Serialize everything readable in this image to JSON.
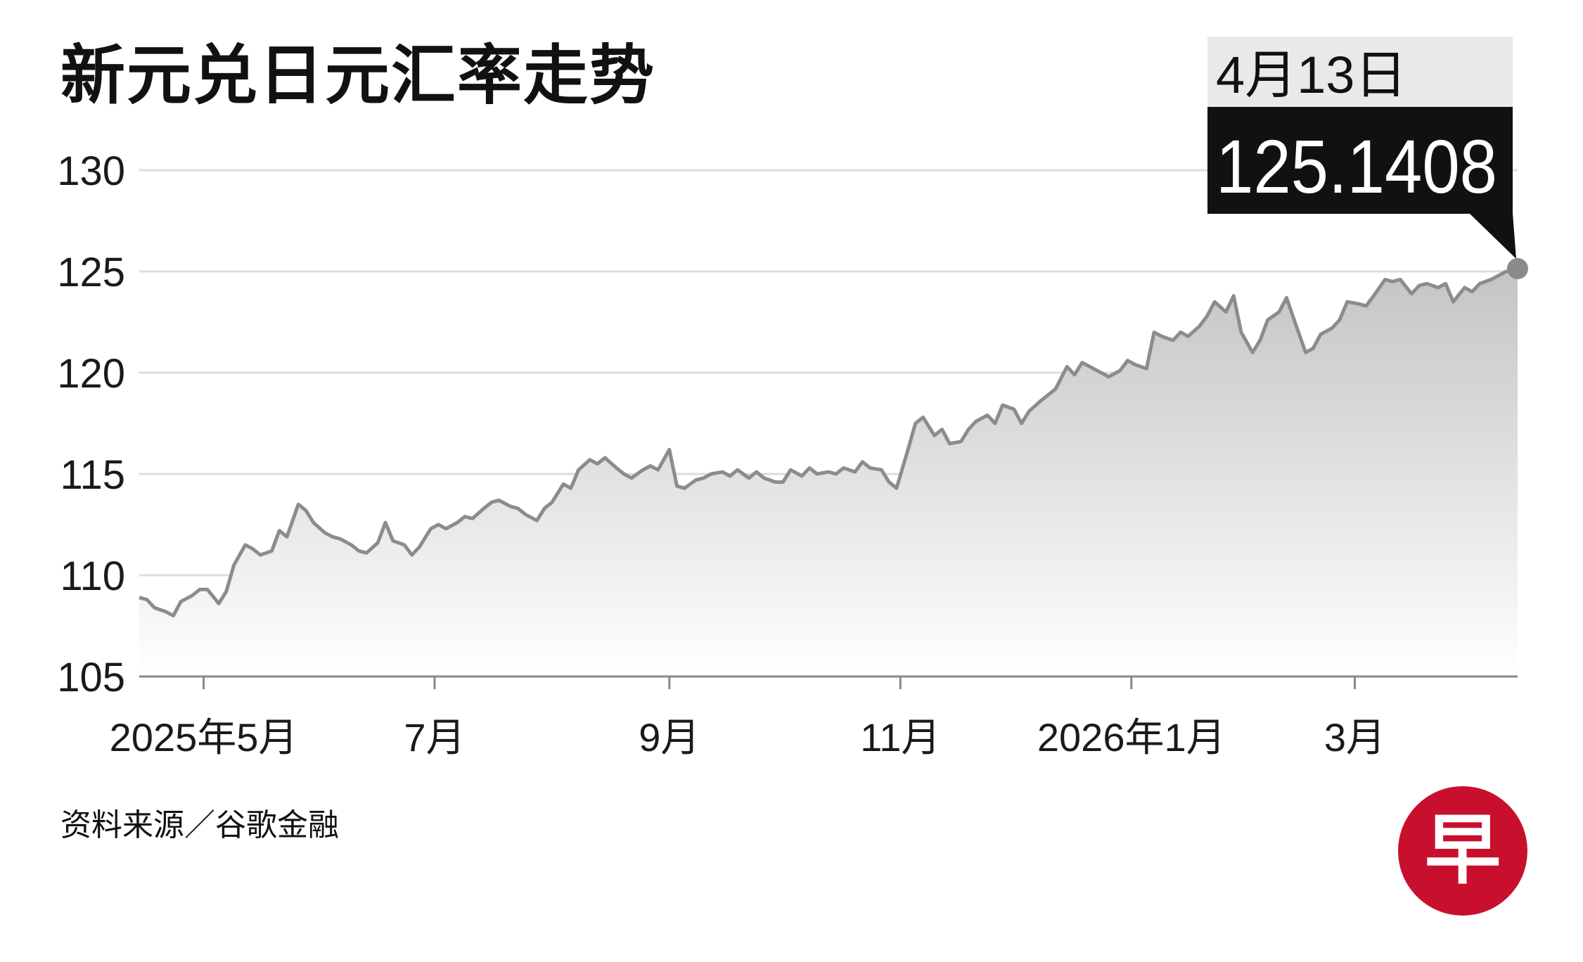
{
  "title": "新元兑日元汇率走势",
  "source": "资料来源／谷歌金融",
  "logo": {
    "glyph": "早",
    "color": "#c8102e"
  },
  "callout": {
    "date": "4月13日",
    "value": "125.1408"
  },
  "chart_data": {
    "type": "area",
    "title": "新元兑日元汇率走势",
    "xlabel": "",
    "ylabel": "",
    "ylim": [
      105,
      130
    ],
    "yticks": [
      130,
      125,
      120,
      115,
      110,
      105
    ],
    "grid": true,
    "x_range": [
      "2025-04-14",
      "2026-04-13"
    ],
    "xticks": [
      {
        "date": "2025-05-01",
        "label": "2025年5月"
      },
      {
        "date": "2025-07-01",
        "label": "7月"
      },
      {
        "date": "2025-09-01",
        "label": "9月"
      },
      {
        "date": "2025-11-01",
        "label": "11月"
      },
      {
        "date": "2026-01-01",
        "label": "2026年1月"
      },
      {
        "date": "2026-03-01",
        "label": "3月"
      }
    ],
    "colors": {
      "line": "#8c8c8c",
      "fill_top": "#c4c4c4",
      "fill_bottom": "#ffffff",
      "grid": "#dcdcdc",
      "axis": "#888888",
      "dot": "#8a8a8a",
      "callout_bg": "#111111",
      "callout_date_bg": "#e9e9e9"
    },
    "series": [
      {
        "points": [
          [
            "2025-04-14",
            108.9
          ],
          [
            "2025-04-16",
            108.8
          ],
          [
            "2025-04-18",
            108.4
          ],
          [
            "2025-04-21",
            108.2
          ],
          [
            "2025-04-23",
            108.0
          ],
          [
            "2025-04-25",
            108.7
          ],
          [
            "2025-04-28",
            109.0
          ],
          [
            "2025-04-30",
            109.3
          ],
          [
            "2025-05-02",
            109.3
          ],
          [
            "2025-05-05",
            108.6
          ],
          [
            "2025-05-07",
            109.2
          ],
          [
            "2025-05-09",
            110.5
          ],
          [
            "2025-05-12",
            111.5
          ],
          [
            "2025-05-14",
            111.3
          ],
          [
            "2025-05-16",
            111.0
          ],
          [
            "2025-05-19",
            111.2
          ],
          [
            "2025-05-21",
            112.2
          ],
          [
            "2025-05-23",
            111.9
          ],
          [
            "2025-05-26",
            113.5
          ],
          [
            "2025-05-28",
            113.2
          ],
          [
            "2025-05-30",
            112.6
          ],
          [
            "2025-06-02",
            112.1
          ],
          [
            "2025-06-04",
            111.9
          ],
          [
            "2025-06-06",
            111.8
          ],
          [
            "2025-06-09",
            111.5
          ],
          [
            "2025-06-11",
            111.2
          ],
          [
            "2025-06-13",
            111.1
          ],
          [
            "2025-06-16",
            111.6
          ],
          [
            "2025-06-18",
            112.6
          ],
          [
            "2025-06-20",
            111.7
          ],
          [
            "2025-06-23",
            111.5
          ],
          [
            "2025-06-25",
            111.0
          ],
          [
            "2025-06-27",
            111.4
          ],
          [
            "2025-06-30",
            112.3
          ],
          [
            "2025-07-02",
            112.5
          ],
          [
            "2025-07-04",
            112.3
          ],
          [
            "2025-07-07",
            112.6
          ],
          [
            "2025-07-09",
            112.9
          ],
          [
            "2025-07-11",
            112.8
          ],
          [
            "2025-07-14",
            113.3
          ],
          [
            "2025-07-16",
            113.6
          ],
          [
            "2025-07-18",
            113.7
          ],
          [
            "2025-07-21",
            113.4
          ],
          [
            "2025-07-23",
            113.3
          ],
          [
            "2025-07-25",
            113.0
          ],
          [
            "2025-07-28",
            112.7
          ],
          [
            "2025-07-30",
            113.3
          ],
          [
            "2025-08-01",
            113.6
          ],
          [
            "2025-08-04",
            114.5
          ],
          [
            "2025-08-06",
            114.3
          ],
          [
            "2025-08-08",
            115.2
          ],
          [
            "2025-08-11",
            115.7
          ],
          [
            "2025-08-13",
            115.5
          ],
          [
            "2025-08-15",
            115.8
          ],
          [
            "2025-08-18",
            115.3
          ],
          [
            "2025-08-20",
            115.0
          ],
          [
            "2025-08-22",
            114.8
          ],
          [
            "2025-08-25",
            115.2
          ],
          [
            "2025-08-27",
            115.4
          ],
          [
            "2025-08-29",
            115.2
          ],
          [
            "2025-09-01",
            116.2
          ],
          [
            "2025-09-03",
            114.4
          ],
          [
            "2025-09-05",
            114.3
          ],
          [
            "2025-09-08",
            114.7
          ],
          [
            "2025-09-10",
            114.8
          ],
          [
            "2025-09-12",
            115.0
          ],
          [
            "2025-09-15",
            115.1
          ],
          [
            "2025-09-17",
            114.9
          ],
          [
            "2025-09-19",
            115.2
          ],
          [
            "2025-09-22",
            114.8
          ],
          [
            "2025-09-24",
            115.1
          ],
          [
            "2025-09-26",
            114.8
          ],
          [
            "2025-09-29",
            114.6
          ],
          [
            "2025-10-01",
            114.6
          ],
          [
            "2025-10-03",
            115.2
          ],
          [
            "2025-10-06",
            114.9
          ],
          [
            "2025-10-08",
            115.3
          ],
          [
            "2025-10-10",
            115.0
          ],
          [
            "2025-10-13",
            115.1
          ],
          [
            "2025-10-15",
            115.0
          ],
          [
            "2025-10-17",
            115.3
          ],
          [
            "2025-10-20",
            115.1
          ],
          [
            "2025-10-22",
            115.6
          ],
          [
            "2025-10-24",
            115.3
          ],
          [
            "2025-10-27",
            115.2
          ],
          [
            "2025-10-29",
            114.6
          ],
          [
            "2025-10-31",
            114.3
          ],
          [
            "2025-11-03",
            116.2
          ],
          [
            "2025-11-05",
            117.5
          ],
          [
            "2025-11-07",
            117.8
          ],
          [
            "2025-11-10",
            116.9
          ],
          [
            "2025-11-12",
            117.2
          ],
          [
            "2025-11-14",
            116.5
          ],
          [
            "2025-11-17",
            116.6
          ],
          [
            "2025-11-19",
            117.2
          ],
          [
            "2025-11-21",
            117.6
          ],
          [
            "2025-11-24",
            117.9
          ],
          [
            "2025-11-26",
            117.5
          ],
          [
            "2025-11-28",
            118.4
          ],
          [
            "2025-12-01",
            118.2
          ],
          [
            "2025-12-03",
            117.5
          ],
          [
            "2025-12-05",
            118.1
          ],
          [
            "2025-12-08",
            118.6
          ],
          [
            "2025-12-10",
            118.9
          ],
          [
            "2025-12-12",
            119.2
          ],
          [
            "2025-12-15",
            120.3
          ],
          [
            "2025-12-17",
            119.9
          ],
          [
            "2025-12-19",
            120.5
          ],
          [
            "2025-12-22",
            120.2
          ],
          [
            "2025-12-24",
            120.0
          ],
          [
            "2025-12-26",
            119.8
          ],
          [
            "2025-12-29",
            120.1
          ],
          [
            "2025-12-31",
            120.6
          ],
          [
            "2026-01-02",
            120.4
          ],
          [
            "2026-01-05",
            120.2
          ],
          [
            "2026-01-07",
            122.0
          ],
          [
            "2026-01-09",
            121.8
          ],
          [
            "2026-01-12",
            121.6
          ],
          [
            "2026-01-14",
            122.0
          ],
          [
            "2026-01-16",
            121.8
          ],
          [
            "2026-01-19",
            122.3
          ],
          [
            "2026-01-21",
            122.8
          ],
          [
            "2026-01-23",
            123.5
          ],
          [
            "2026-01-26",
            123.0
          ],
          [
            "2026-01-28",
            123.8
          ],
          [
            "2026-01-30",
            122.0
          ],
          [
            "2026-02-02",
            121.0
          ],
          [
            "2026-02-04",
            121.6
          ],
          [
            "2026-02-06",
            122.6
          ],
          [
            "2026-02-09",
            123.0
          ],
          [
            "2026-02-11",
            123.7
          ],
          [
            "2026-02-13",
            122.6
          ],
          [
            "2026-02-16",
            121.0
          ],
          [
            "2026-02-18",
            121.2
          ],
          [
            "2026-02-20",
            121.9
          ],
          [
            "2026-02-23",
            122.2
          ],
          [
            "2026-02-25",
            122.6
          ],
          [
            "2026-02-27",
            123.5
          ],
          [
            "2026-03-02",
            123.4
          ],
          [
            "2026-03-04",
            123.3
          ],
          [
            "2026-03-06",
            123.8
          ],
          [
            "2026-03-09",
            124.6
          ],
          [
            "2026-03-11",
            124.5
          ],
          [
            "2026-03-13",
            124.6
          ],
          [
            "2026-03-16",
            123.9
          ],
          [
            "2026-03-18",
            124.3
          ],
          [
            "2026-03-20",
            124.4
          ],
          [
            "2026-03-23",
            124.2
          ],
          [
            "2026-03-25",
            124.4
          ],
          [
            "2026-03-27",
            123.5
          ],
          [
            "2026-03-30",
            124.2
          ],
          [
            "2026-04-01",
            124.0
          ],
          [
            "2026-04-03",
            124.4
          ],
          [
            "2026-04-06",
            124.6
          ],
          [
            "2026-04-08",
            124.8
          ],
          [
            "2026-04-10",
            125.0
          ],
          [
            "2026-04-13",
            125.14
          ]
        ]
      }
    ]
  }
}
